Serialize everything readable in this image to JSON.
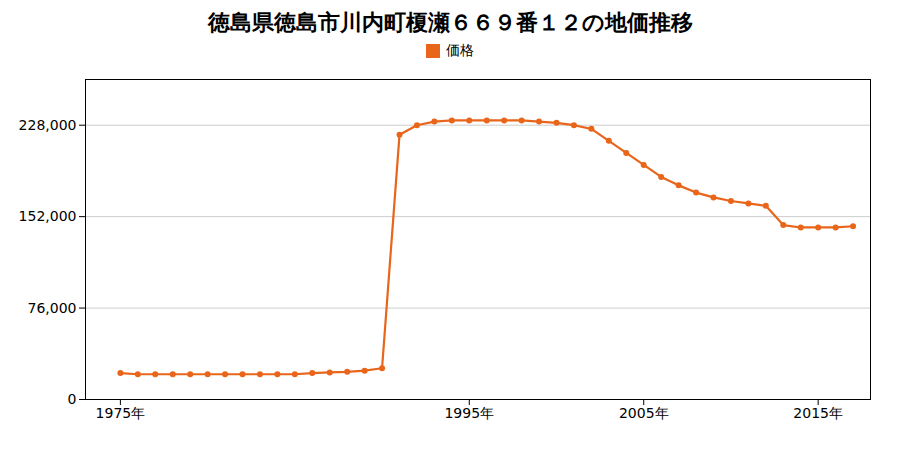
{
  "chart_data": {
    "type": "line",
    "title": "徳島県徳島市川内町榎瀬６６９番１２の地価推移",
    "x": [
      1975,
      1976,
      1977,
      1978,
      1979,
      1980,
      1981,
      1982,
      1983,
      1984,
      1985,
      1986,
      1987,
      1988,
      1989,
      1990,
      1991,
      1992,
      1993,
      1994,
      1995,
      1996,
      1997,
      1998,
      1999,
      2000,
      2001,
      2002,
      2003,
      2004,
      2005,
      2006,
      2007,
      2008,
      2009,
      2010,
      2011,
      2012,
      2013,
      2014,
      2015,
      2016,
      2017
    ],
    "series": [
      {
        "name": "価格",
        "color": "#e8651a",
        "marker": "circle",
        "values": [
          22000,
          21000,
          21000,
          21000,
          21000,
          21000,
          21000,
          21000,
          21000,
          21000,
          21000,
          22000,
          22500,
          23000,
          24000,
          26000,
          220000,
          228000,
          231000,
          232000,
          232000,
          232000,
          232000,
          232000,
          231000,
          230000,
          228000,
          225000,
          215000,
          205000,
          195000,
          185000,
          178000,
          172000,
          168000,
          165000,
          163000,
          161000,
          145000,
          143000,
          143000,
          143000,
          144000
        ]
      }
    ],
    "xlim": [
      1973,
      2018
    ],
    "xticks": [
      {
        "value": 1975,
        "label": "1975年"
      },
      {
        "value": 1995,
        "label": "1995年"
      },
      {
        "value": 2005,
        "label": "2005年"
      },
      {
        "value": 2015,
        "label": "2015年"
      }
    ],
    "ylim": [
      0,
      266000
    ],
    "yticks": [
      0,
      {
        "value": 76000,
        "label": "76,000"
      },
      {
        "value": 152000,
        "label": "152,000"
      },
      {
        "value": 228000,
        "label": "228,000"
      }
    ],
    "grid": true,
    "legend": "top"
  }
}
